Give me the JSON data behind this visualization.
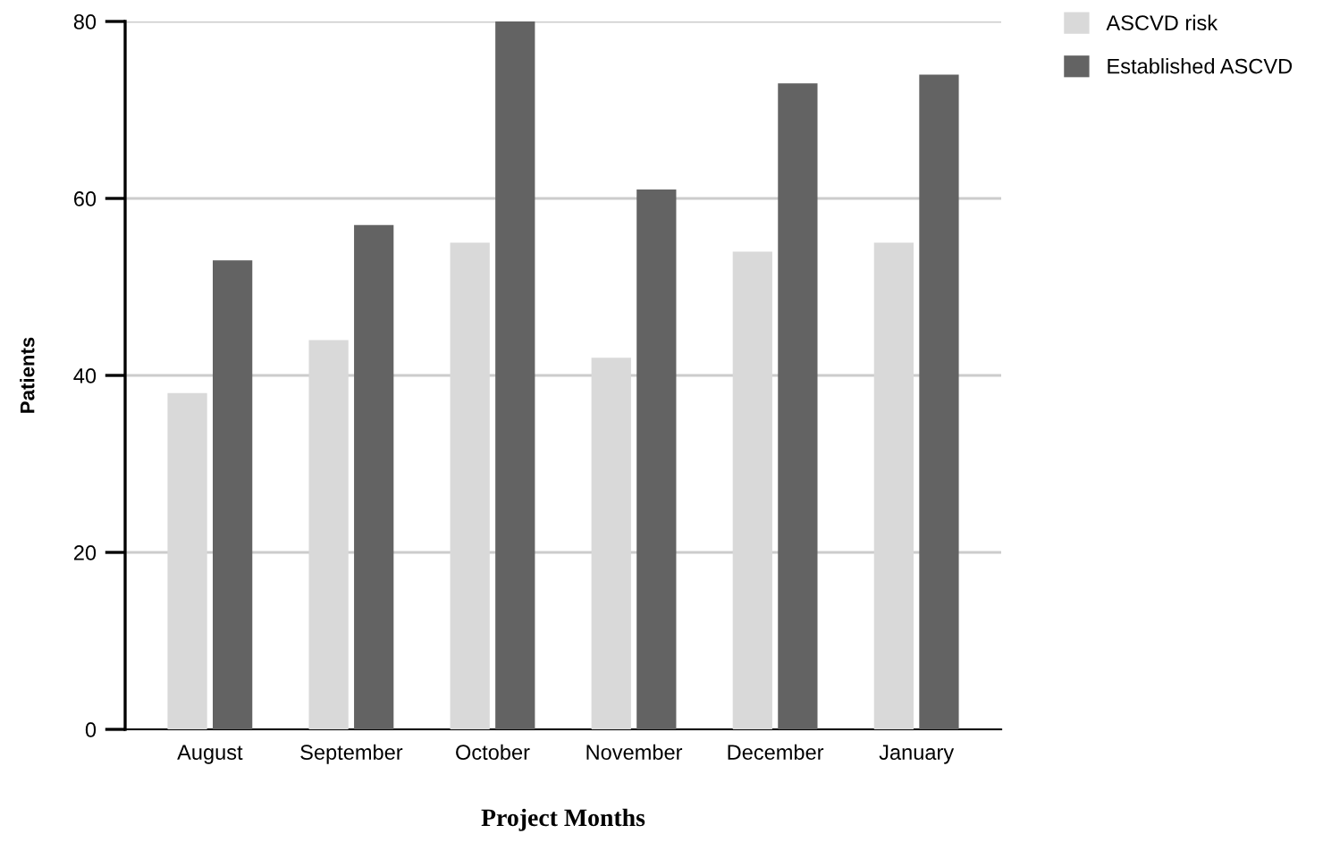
{
  "chart_data": {
    "type": "bar",
    "xlabel": "Project Months",
    "ylabel": "Patients",
    "categories": [
      "August",
      "September",
      "October",
      "November",
      "December",
      "January"
    ],
    "series": [
      {
        "name": "ASCVD risk",
        "color": "#d9d9d9",
        "values": [
          38,
          44,
          55,
          42,
          54,
          55
        ]
      },
      {
        "name": "Established ASCVD",
        "color": "#636363",
        "values": [
          53,
          57,
          80,
          61,
          73,
          74
        ]
      }
    ],
    "ylim": [
      0,
      80
    ],
    "yticks": [
      0,
      20,
      40,
      60,
      80
    ],
    "grid": "y",
    "legend": "top right"
  }
}
